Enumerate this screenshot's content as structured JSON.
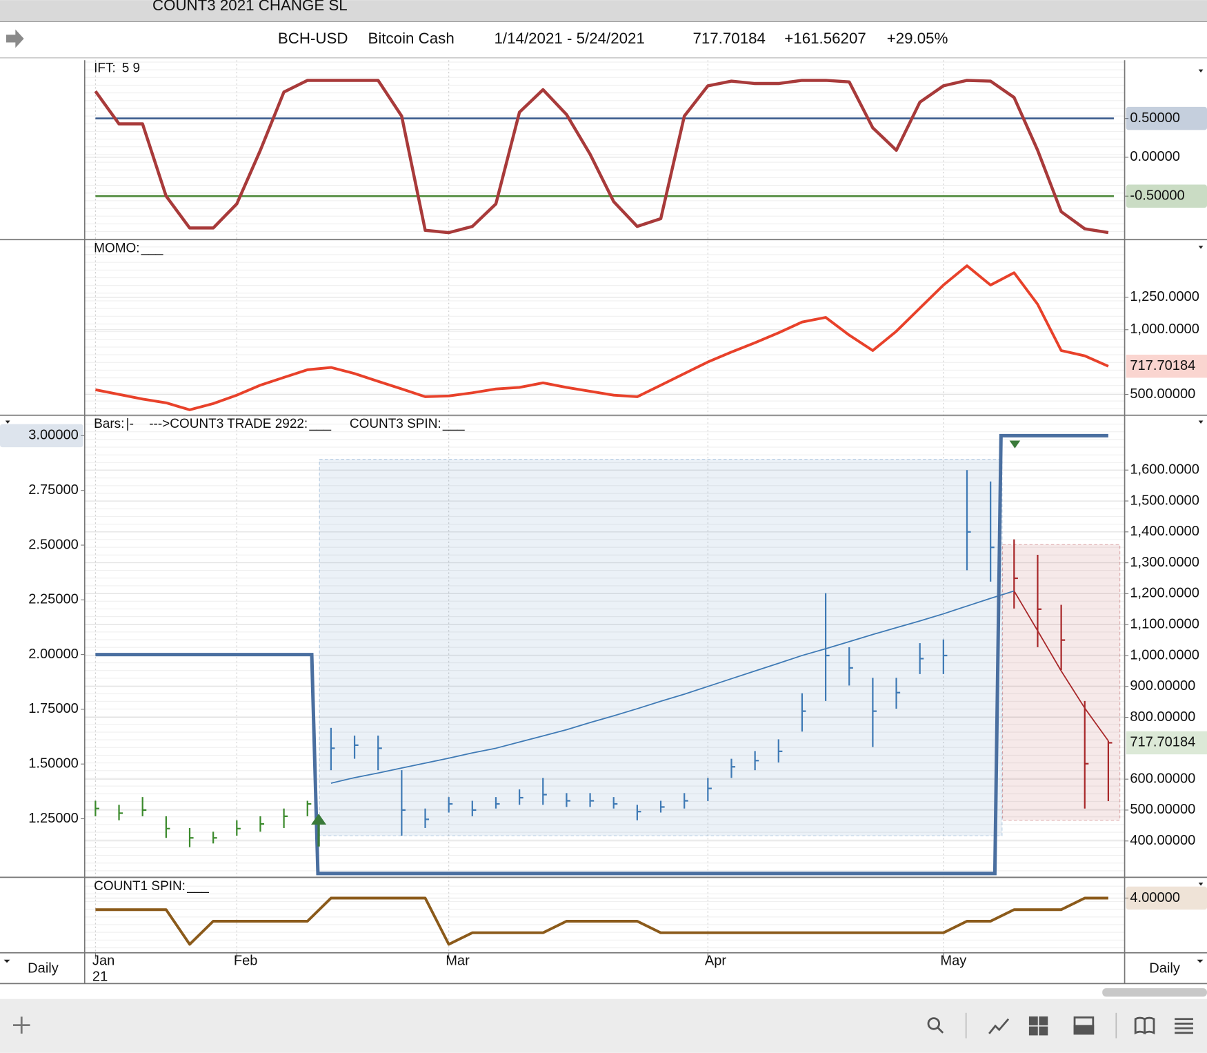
{
  "window_title": "COUNT3 2021 CHANGE SL",
  "header": {
    "symbol": "BCH-USD",
    "name": "Bitcoin Cash",
    "date_range": "1/14/2021 - 5/24/2021",
    "last": "717.70184",
    "change": "+161.56207",
    "change_percent": "+29.05%"
  },
  "x_axis": {
    "categories": [
      "Jan",
      null,
      null,
      null,
      null,
      null,
      "Feb",
      null,
      null,
      null,
      null,
      null,
      null,
      null,
      null,
      "Mar",
      null,
      null,
      null,
      null,
      null,
      null,
      null,
      null,
      null,
      null,
      "Apr",
      null,
      null,
      null,
      null,
      null,
      null,
      null,
      null,
      null,
      "May",
      null,
      null,
      null,
      null,
      null,
      null,
      null
    ],
    "year": "21",
    "period_left": "Daily",
    "period_right": "Daily"
  },
  "chart_data": [
    {
      "type": "line",
      "label": "IFT:",
      "params": "5 9",
      "color": "#a83a3a",
      "ref_lines": true,
      "values": [
        0.85,
        0.43,
        0.43,
        -0.5,
        -0.91,
        -0.91,
        -0.6,
        0.09,
        0.84,
        0.99,
        0.99,
        0.99,
        0.99,
        0.53,
        -0.94,
        -0.97,
        -0.89,
        -0.6,
        0.58,
        0.87,
        0.55,
        0.04,
        -0.57,
        -0.89,
        -0.79,
        0.53,
        0.92,
        0.98,
        0.95,
        0.95,
        0.99,
        0.99,
        0.97,
        0.38,
        0.09,
        0.71,
        0.92,
        0.99,
        0.98,
        0.77,
        0.09,
        -0.7,
        -0.92,
        -0.97
      ],
      "ylim": [
        -1.05,
        1.25
      ],
      "yticks": [
        {
          "value": 0.5,
          "label": "0.50000",
          "color": "#3f5f8f"
        },
        {
          "value": 0,
          "label": "0.00000"
        },
        {
          "value": -0.5,
          "label": "-0.50000",
          "color": "#4f8a3c"
        }
      ]
    },
    {
      "type": "line",
      "label": "MOMO:",
      "swatch": "___",
      "color": "#e8412a",
      "values": [
        536,
        500,
        464,
        435,
        381,
        429,
        494,
        571,
        631,
        690,
        708,
        661,
        601,
        542,
        482,
        488,
        512,
        542,
        554,
        589,
        554,
        524,
        494,
        482,
        571,
        661,
        750,
        827,
        899,
        976,
        1059,
        1095,
        958,
        839,
        988,
        1167,
        1345,
        1494,
        1345,
        1440,
        1196,
        839,
        798,
        717.70184
      ],
      "ylim": [
        345,
        1690
      ],
      "yticks": [
        {
          "value": 500,
          "label": "500.00000"
        },
        {
          "value": 1000,
          "label": "1,000.0000"
        },
        {
          "value": 1250,
          "label": "1,250.0000"
        }
      ],
      "marker": {
        "value": 717.70184,
        "label": "717.70184",
        "color": "#e8412a"
      }
    },
    {
      "type": "ohlc",
      "bar_color": "#3b8a2c",
      "legend": [
        {
          "label": "Bars:",
          "swatch": "|-"
        },
        {
          "label": "--->COUNT3 TRADE 2922:",
          "swatch": "___"
        },
        {
          "label": "COUNT3 SPIN:",
          "swatch": "___"
        }
      ],
      "high": [
        530,
        517,
        542,
        480,
        442,
        430,
        467,
        480,
        505,
        530,
        766,
        741,
        741,
        629,
        505,
        542,
        530,
        542,
        567,
        604,
        555,
        555,
        542,
        517,
        530,
        555,
        604,
        666,
        691,
        729,
        878,
        1202,
        1027,
        928,
        928,
        1040,
        1052,
        1600,
        1563,
        1376,
        1326,
        1164,
        853,
        724
      ],
      "low": [
        480,
        467,
        480,
        410,
        380,
        392,
        417,
        430,
        442,
        480,
        629,
        666,
        629,
        417,
        442,
        492,
        480,
        505,
        517,
        517,
        510,
        510,
        505,
        467,
        492,
        505,
        529,
        604,
        629,
        654,
        754,
        853,
        903,
        704,
        828,
        940,
        940,
        1276,
        1239,
        1152,
        1027,
        953,
        505,
        529
      ],
      "close": [
        505,
        490,
        500,
        440,
        410,
        410,
        440,
        455,
        480,
        520,
        700,
        710,
        700,
        500,
        470,
        520,
        500,
        520,
        540,
        550,
        530,
        530,
        520,
        495,
        510,
        530,
        570,
        640,
        660,
        690,
        820,
        1000,
        960,
        820,
        880,
        990,
        1000,
        1400,
        1350,
        1250,
        1150,
        1050,
        650,
        717.70184
      ],
      "ylim": [
        285,
        1775
      ],
      "yticks": [
        {
          "value": 400,
          "label": "400.00000"
        },
        {
          "value": 500,
          "label": "500.00000"
        },
        {
          "value": 600,
          "label": "600.00000"
        },
        {
          "value": 800,
          "label": "800.00000"
        },
        {
          "value": 900,
          "label": "900.00000"
        },
        {
          "value": 1000,
          "label": "1,000.0000"
        },
        {
          "value": 1100,
          "label": "1,100.0000"
        },
        {
          "value": 1200,
          "label": "1,200.0000"
        },
        {
          "value": 1300,
          "label": "1,300.0000"
        },
        {
          "value": 1400,
          "label": "1,400.0000"
        },
        {
          "value": 1500,
          "label": "1,500.0000"
        },
        {
          "value": 1600,
          "label": "1,600.0000"
        }
      ],
      "marker": {
        "value": 717.70184,
        "label": "717.70184",
        "color": "#5f9a4a"
      },
      "zones": [
        {
          "from": 10,
          "to": 38,
          "low": 417,
          "high": 1635,
          "color": "#3f7ab5"
        },
        {
          "from": 39,
          "to": 43,
          "low": 467,
          "high": 1359,
          "color": "#a8282a"
        }
      ],
      "trades": [
        {
          "color": "#3f7ab5",
          "values": [
            null,
            null,
            null,
            null,
            null,
            null,
            null,
            null,
            null,
            null,
            587,
            605,
            620,
            636,
            652,
            668,
            685,
            700,
            720,
            740,
            760,
            783,
            805,
            828,
            852,
            875,
            900,
            925,
            950,
            975,
            1000,
            1022,
            1045,
            1068,
            1090,
            1112,
            1135,
            1160,
            1185,
            1209,
            null,
            null,
            null,
            null
          ]
        },
        {
          "color": "#a8282a",
          "values": [
            null,
            null,
            null,
            null,
            null,
            null,
            null,
            null,
            null,
            null,
            null,
            null,
            null,
            null,
            null,
            null,
            null,
            null,
            null,
            null,
            null,
            null,
            null,
            null,
            null,
            null,
            null,
            null,
            null,
            null,
            null,
            null,
            null,
            null,
            null,
            null,
            null,
            null,
            null,
            1209,
            1080,
            950,
            830,
            724
          ]
        }
      ],
      "spin": {
        "color": "#4a6fa0",
        "axis": "y2",
        "values": [
          2,
          2,
          2,
          2,
          2,
          2,
          2,
          2,
          2,
          2,
          1,
          1,
          1,
          1,
          1,
          1,
          1,
          1,
          1,
          1,
          1,
          1,
          1,
          1,
          1,
          1,
          1,
          1,
          1,
          1,
          1,
          1,
          1,
          1,
          1,
          1,
          1,
          1,
          1,
          3,
          3,
          3,
          3,
          3
        ]
      },
      "y2lim": [
        0.986,
        3.09
      ],
      "y2ticks": [
        {
          "value": 1.25,
          "label": "1.25000"
        },
        {
          "value": 1.5,
          "label": "1.50000"
        },
        {
          "value": 1.75,
          "label": "1.75000"
        },
        {
          "value": 2,
          "label": "2.00000"
        },
        {
          "value": 2.25,
          "label": "2.25000"
        },
        {
          "value": 2.5,
          "label": "2.50000"
        },
        {
          "value": 2.75,
          "label": "2.75000"
        },
        {
          "value": 3,
          "label": "3.00000",
          "color": "#8fa6c4"
        }
      ]
    },
    {
      "type": "line",
      "label": "COUNT1 SPIN:",
      "swatch": "___",
      "color": "#8b5a1a",
      "values": [
        3,
        3,
        3,
        3,
        0,
        2,
        2,
        2,
        2,
        2,
        4,
        4,
        4,
        4,
        4,
        0,
        1,
        1,
        1,
        1,
        2,
        2,
        2,
        2,
        1,
        1,
        1,
        1,
        1,
        1,
        1,
        1,
        1,
        1,
        1,
        1,
        1,
        2,
        2,
        3,
        3,
        3,
        4,
        4
      ],
      "ylim": [
        -0.6,
        5.73
      ],
      "yticks": [
        {
          "value": 4,
          "label": "4.00000",
          "color": "#c9a27a"
        }
      ]
    }
  ]
}
